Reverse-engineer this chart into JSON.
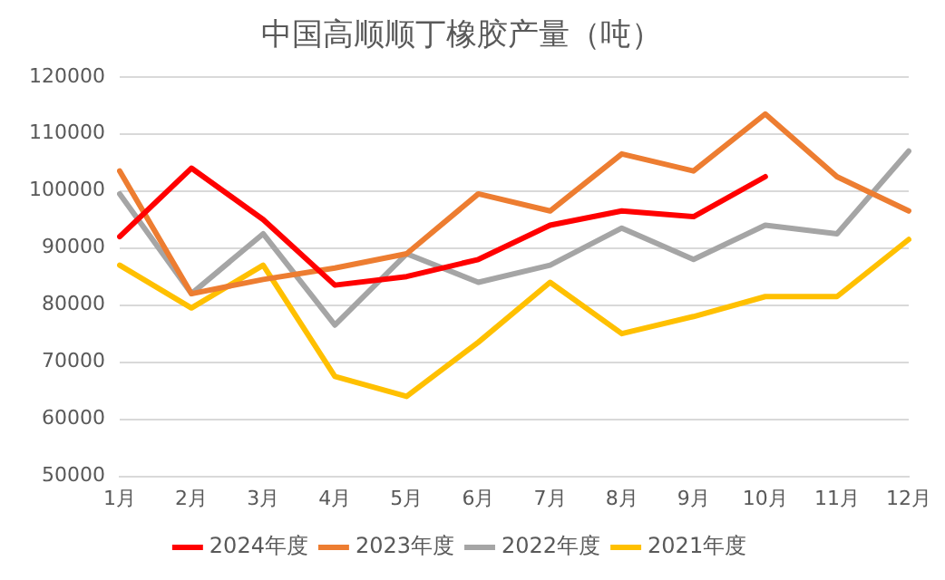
{
  "chart_data": {
    "type": "line",
    "title": "中国高顺顺丁橡胶产量（吨）",
    "categories": [
      "1月",
      "2月",
      "3月",
      "4月",
      "5月",
      "6月",
      "7月",
      "8月",
      "9月",
      "10月",
      "11月",
      "12月"
    ],
    "series": [
      {
        "name": "2024年度",
        "color": "#ff0000",
        "values": [
          92000,
          104000,
          95000,
          83500,
          85000,
          88000,
          94000,
          96500,
          95500,
          102500,
          null,
          null
        ]
      },
      {
        "name": "2023年度",
        "color": "#ed7d31",
        "values": [
          103500,
          82000,
          84500,
          86500,
          89000,
          99500,
          96500,
          106500,
          103500,
          113500,
          102500,
          96500
        ]
      },
      {
        "name": "2022年度",
        "color": "#a5a5a5",
        "values": [
          99500,
          82000,
          92500,
          76500,
          89000,
          84000,
          87000,
          93500,
          88000,
          94000,
          92500,
          107000
        ]
      },
      {
        "name": "2021年度",
        "color": "#ffc000",
        "values": [
          87000,
          79500,
          87000,
          67500,
          64000,
          73500,
          84000,
          75000,
          78000,
          81500,
          81500,
          91500
        ]
      }
    ],
    "ylim": [
      50000,
      120000
    ],
    "yticks": [
      50000,
      60000,
      70000,
      80000,
      90000,
      100000,
      110000,
      120000
    ],
    "grid": "y",
    "legend": "bottom",
    "marker": "none",
    "line_style": "solid"
  }
}
